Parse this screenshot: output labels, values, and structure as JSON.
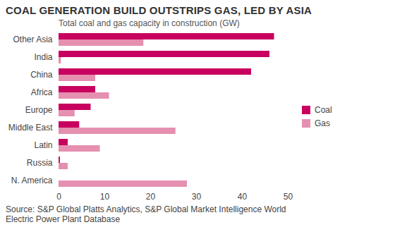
{
  "chart_data": {
    "type": "bar",
    "orientation": "horizontal",
    "title": "COAL GENERATION BUILD OUTSTRIPS GAS, LED BY ASIA",
    "subtitle": "Total coal and gas capacity in construction (GW)",
    "source": "Source: S&P Global Platts Analytics, S&P Global Market Intelligence World Electric Power Plant Database",
    "categories": [
      "Other Asia",
      "India",
      "China",
      "Africa",
      "Europe",
      "Middle East",
      "Latin",
      "Russia",
      "N. America"
    ],
    "series": [
      {
        "name": "Coal",
        "color": "#c8005f",
        "values": [
          47,
          46,
          42,
          8,
          7,
          4.5,
          2,
          0.3,
          0
        ]
      },
      {
        "name": "Gas",
        "color": "#e590b0",
        "values": [
          18.5,
          0.5,
          8,
          11,
          3.5,
          25.5,
          9,
          2,
          28
        ]
      }
    ],
    "xlim": [
      0,
      50
    ],
    "xticks": [
      0,
      10,
      20,
      30,
      40,
      50
    ],
    "grid": false,
    "legend": "right"
  }
}
